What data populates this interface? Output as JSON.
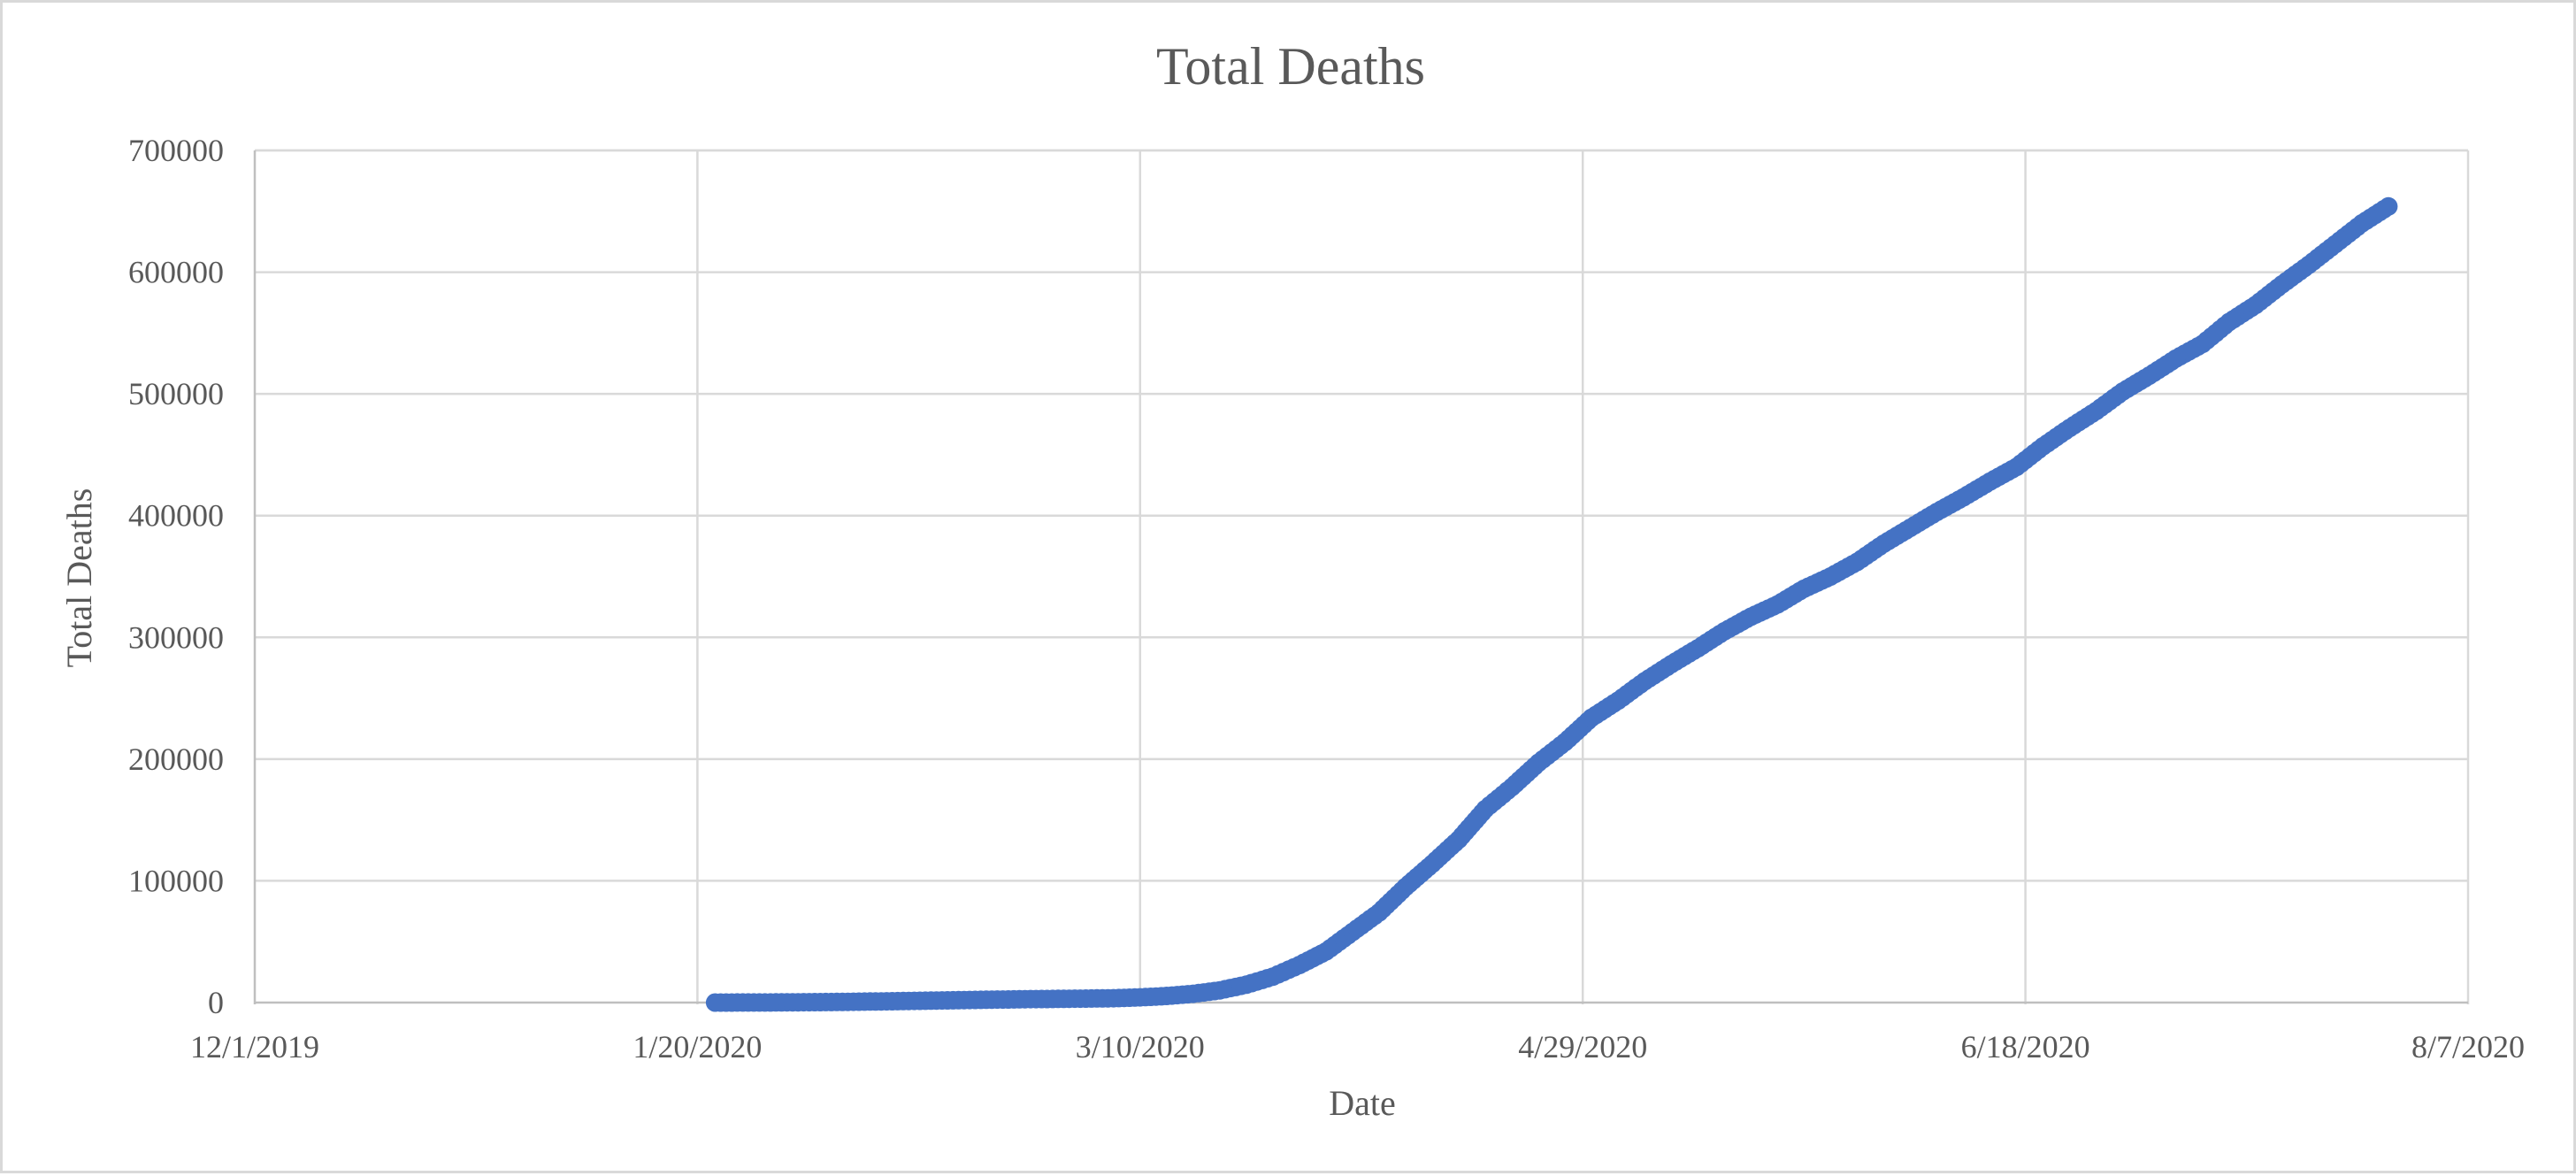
{
  "chart_data": {
    "type": "scatter",
    "title": "Total Deaths",
    "xlabel": "Date",
    "ylabel": "Total Deaths",
    "x_axis": {
      "type": "date",
      "min": "2019-12-01",
      "max": "2020-08-07",
      "ticks": [
        "2019-12-01",
        "2020-01-20",
        "2020-03-10",
        "2020-04-29",
        "2020-06-18",
        "2020-08-07"
      ],
      "tick_labels": [
        "12/1/2019",
        "1/20/2020",
        "3/10/2020",
        "4/29/2020",
        "6/18/2020",
        "8/7/2020"
      ]
    },
    "y_axis": {
      "min": 0,
      "max": 700000,
      "ticks": [
        0,
        100000,
        200000,
        300000,
        400000,
        500000,
        600000,
        700000
      ],
      "tick_labels": [
        "0",
        "100000",
        "200000",
        "300000",
        "400000",
        "500000",
        "600000",
        "700000"
      ]
    },
    "grid": true,
    "legend": "none",
    "marker_color": "#4472c4",
    "series": [
      {
        "x": [
          "2020-01-22",
          "2020-01-27",
          "2020-02-01",
          "2020-02-06",
          "2020-02-11",
          "2020-02-16",
          "2020-02-21",
          "2020-02-26",
          "2020-03-02",
          "2020-03-07",
          "2020-03-10",
          "2020-03-13",
          "2020-03-16",
          "2020-03-19",
          "2020-03-22",
          "2020-03-25",
          "2020-03-28",
          "2020-03-31",
          "2020-04-03",
          "2020-04-06",
          "2020-04-09",
          "2020-04-12",
          "2020-04-15",
          "2020-04-18",
          "2020-04-21",
          "2020-04-24",
          "2020-04-27",
          "2020-04-30",
          "2020-05-03",
          "2020-05-06",
          "2020-05-09",
          "2020-05-12",
          "2020-05-15",
          "2020-05-18",
          "2020-05-21",
          "2020-05-24",
          "2020-05-27",
          "2020-05-30",
          "2020-06-02",
          "2020-06-05",
          "2020-06-08",
          "2020-06-11",
          "2020-06-14",
          "2020-06-17",
          "2020-06-20",
          "2020-06-23",
          "2020-06-26",
          "2020-06-29",
          "2020-07-02",
          "2020-07-05",
          "2020-07-08",
          "2020-07-11",
          "2020-07-14",
          "2020-07-17",
          "2020-07-20",
          "2020-07-23",
          "2020-07-26",
          "2020-07-29"
        ],
        "y": [
          17,
          56,
          259,
          565,
          1113,
          1666,
          2247,
          2763,
          3112,
          3556,
          4262,
          5426,
          7174,
          10040,
          14653,
          21297,
          30832,
          42000,
          58000,
          74000,
          95000,
          114000,
          134000,
          159000,
          177000,
          197000,
          214000,
          234000,
          248000,
          264000,
          278000,
          291000,
          305000,
          317000,
          327000,
          340000,
          350000,
          362000,
          377000,
          390000,
          403000,
          415000,
          428000,
          440000,
          457000,
          472000,
          486000,
          502000,
          515000,
          529000,
          541000,
          559000,
          573000,
          590000,
          606000,
          623000,
          640000,
          654000
        ]
      }
    ]
  }
}
